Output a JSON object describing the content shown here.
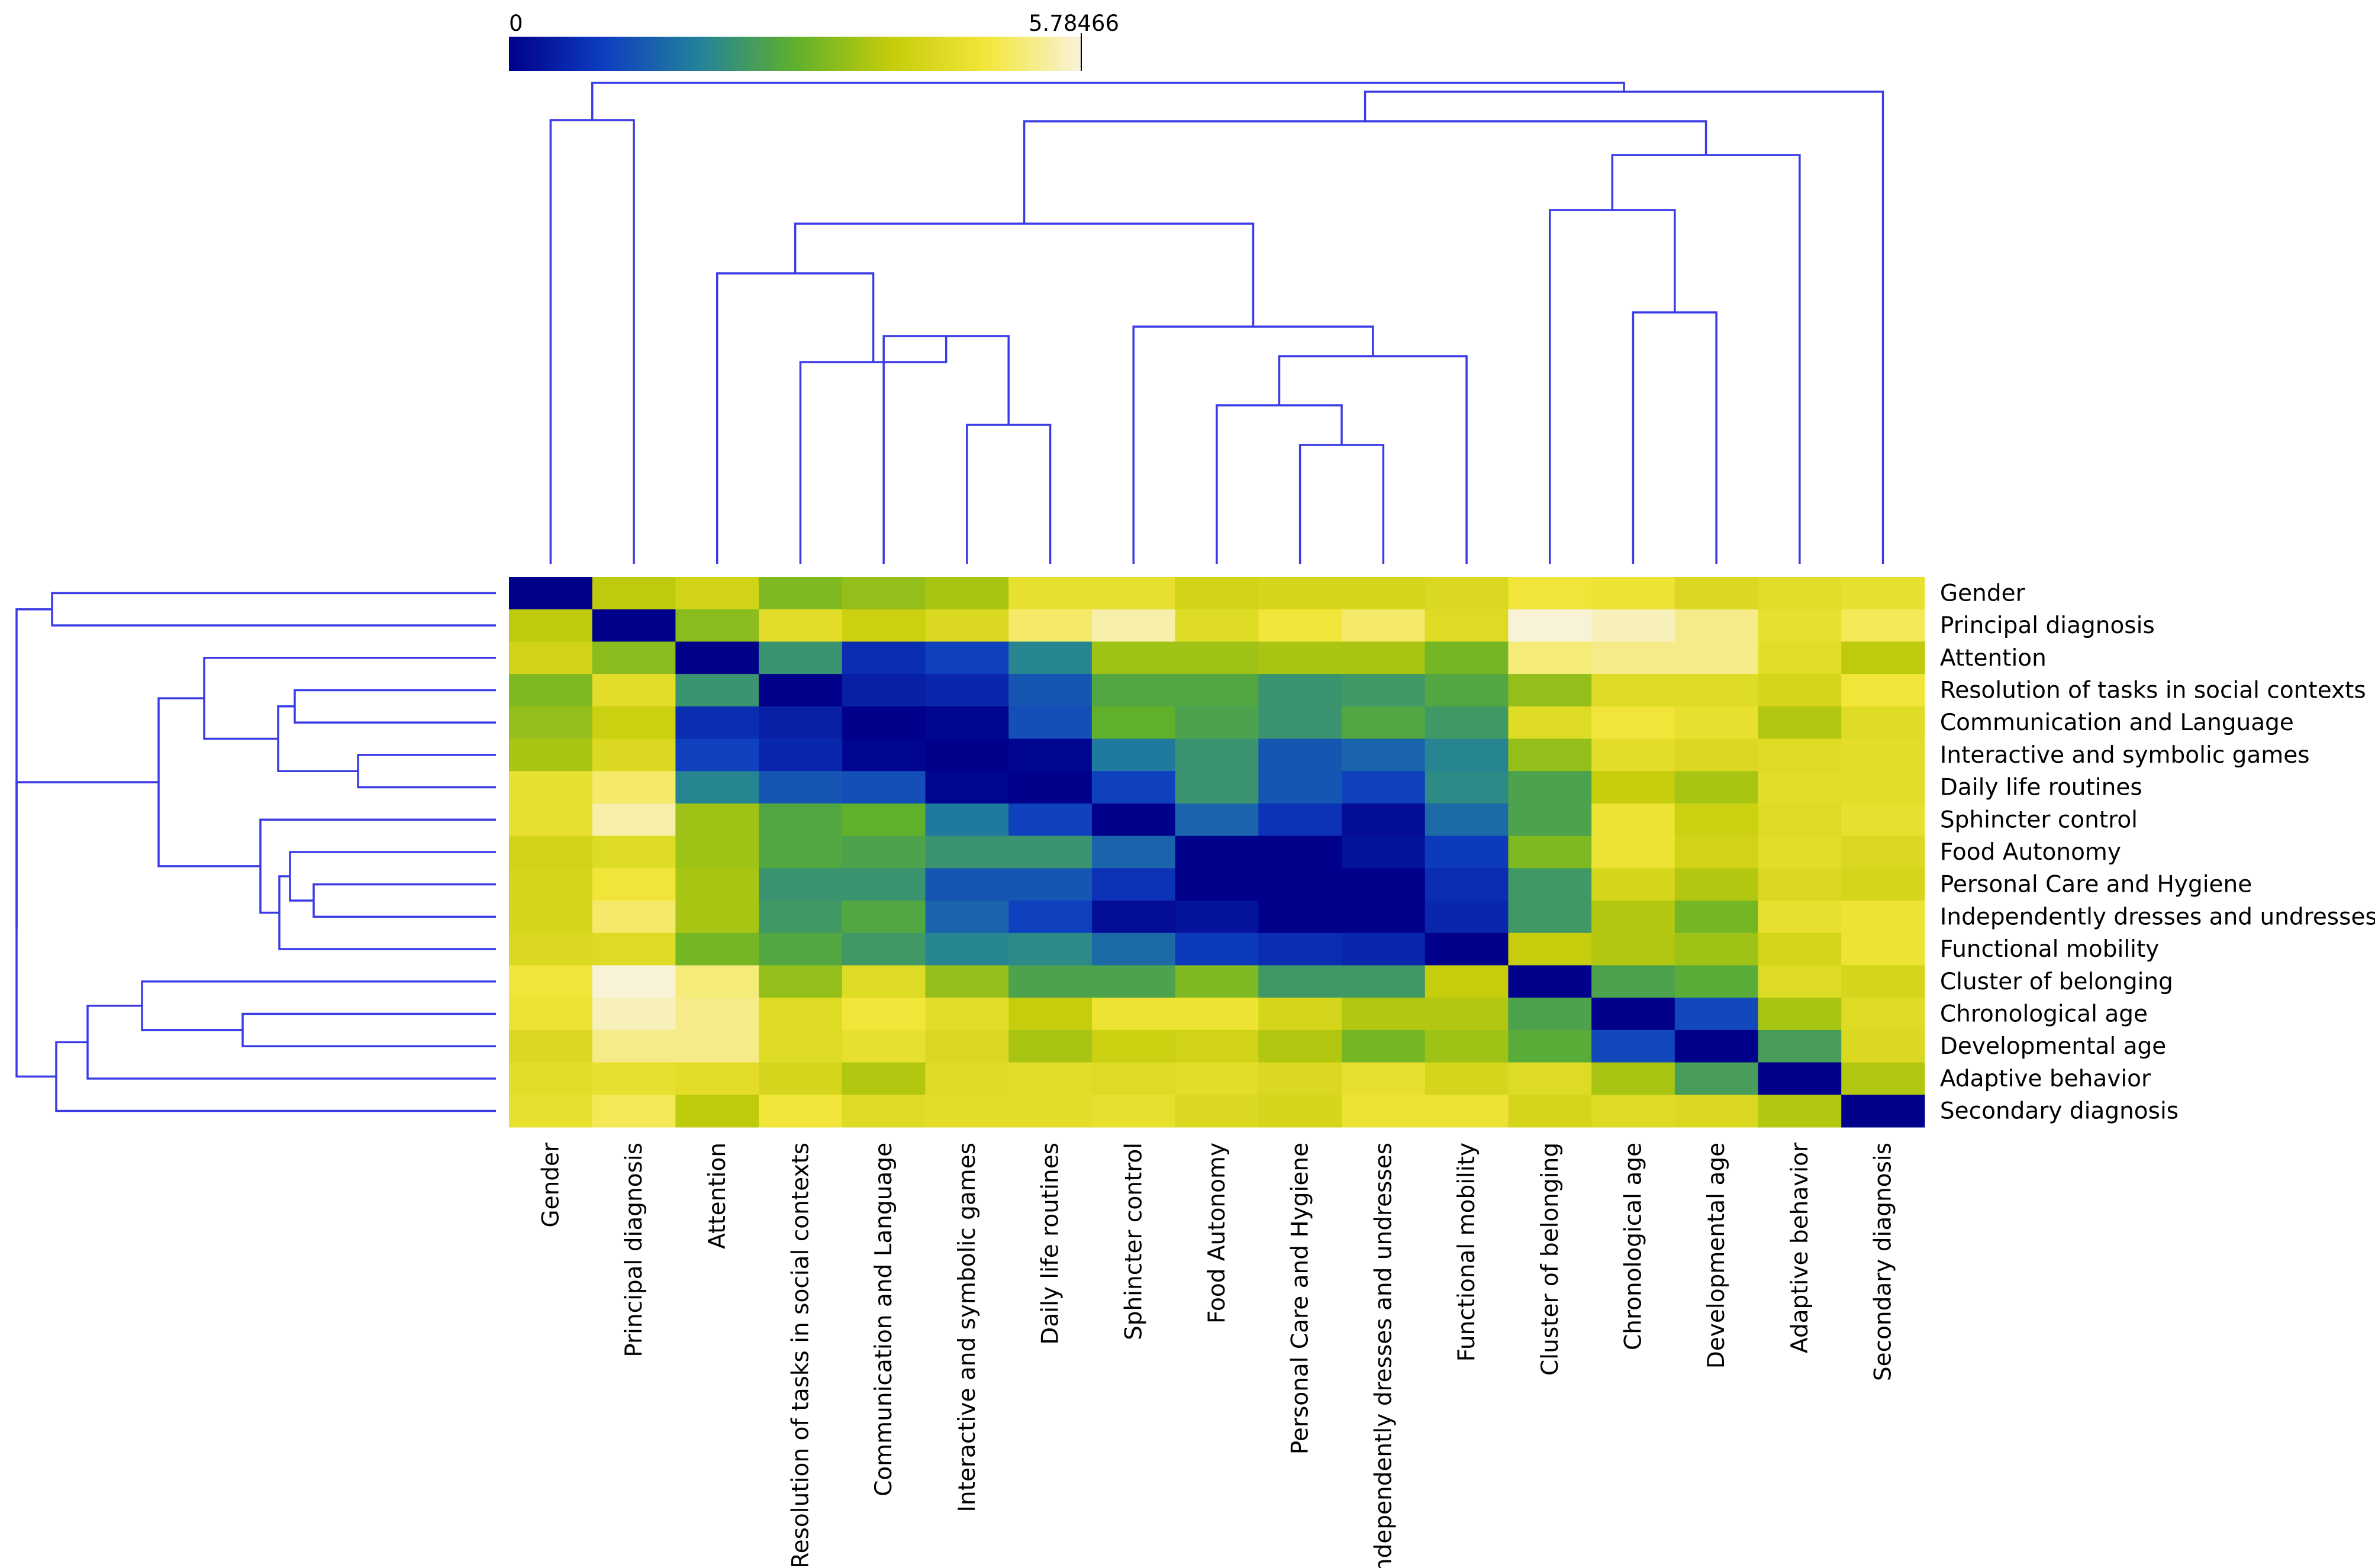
{
  "chart_data": {
    "type": "heatmap",
    "title": "",
    "variables": [
      "Gender",
      "Principal diagnosis",
      "Attention",
      "Resolution of tasks in social contexts",
      "Communication and Language",
      "Interactive and symbolic games",
      "Daily life routines",
      "Sphincter control",
      "Food Autonomy",
      "Personal Care and Hygiene",
      "Independently dresses and undresses",
      "Functional mobility",
      "Cluster of belonging",
      "Chronological age",
      "Developmental age",
      "Adaptive behavior",
      "Secondary diagnosis"
    ],
    "row_labels": [
      "Gender",
      "Principal diagnosis",
      "Attention",
      "Resolution of tasks in social contexts",
      "Communication and Language",
      "Interactive and symbolic games",
      "Daily life routines",
      "Sphincter control",
      "Food Autonomy",
      "Personal Care and Hygiene",
      "Independently dresses and undresses",
      "Functional mobility",
      "Cluster of belonging",
      "Chronological age",
      "Developmental age",
      "Adaptive behavior",
      "Secondary diagnosis"
    ],
    "column_labels": [
      "Gender",
      "Principal diagnosis",
      "Attention",
      "Resolution of tasks in social contexts",
      "Communication and Language",
      "Interactive and symbolic games",
      "Daily life routines",
      "Sphincter control",
      "Food Autonomy",
      "Personal Care and Hygiene",
      "Independently dresses and undresses",
      "Functional mobility",
      "Cluster of belonging",
      "Chronological age",
      "Developmental age",
      "Adaptive behavior",
      "Secondary diagnosis"
    ],
    "values": [
      [
        0.0,
        3.8,
        4.1,
        3.2,
        3.4,
        3.6,
        4.6,
        4.6,
        4.1,
        4.2,
        4.2,
        4.3,
        4.8,
        4.7,
        4.3,
        4.5,
        4.6
      ],
      [
        3.8,
        0.0,
        3.3,
        4.5,
        4.0,
        4.3,
        5.1,
        5.5,
        4.4,
        4.8,
        5.1,
        4.4,
        5.78,
        5.6,
        5.3,
        4.6,
        5.0
      ],
      [
        4.1,
        3.3,
        0.0,
        2.3,
        0.7,
        1.0,
        2.0,
        3.5,
        3.5,
        3.6,
        3.6,
        3.1,
        5.2,
        5.3,
        5.3,
        4.5,
        3.8
      ],
      [
        3.2,
        4.5,
        2.3,
        0.0,
        0.5,
        0.6,
        1.3,
        2.7,
        2.7,
        2.3,
        2.4,
        2.7,
        3.4,
        4.4,
        4.4,
        4.2,
        4.8
      ],
      [
        3.4,
        4.0,
        0.7,
        0.5,
        0.0,
        0.1,
        1.2,
        2.9,
        2.6,
        2.3,
        2.7,
        2.4,
        4.4,
        4.8,
        4.6,
        3.7,
        4.4
      ],
      [
        3.6,
        4.3,
        1.0,
        0.6,
        0.1,
        0.0,
        0.1,
        1.8,
        2.3,
        1.3,
        1.5,
        2.0,
        3.4,
        4.5,
        4.3,
        4.4,
        4.5
      ],
      [
        4.6,
        5.1,
        2.0,
        1.3,
        1.2,
        0.1,
        0.0,
        1.0,
        2.3,
        1.3,
        1.0,
        2.1,
        2.6,
        3.9,
        3.6,
        4.5,
        4.5
      ],
      [
        4.6,
        5.5,
        3.5,
        2.7,
        2.9,
        1.8,
        1.0,
        0.0,
        1.5,
        0.8,
        0.2,
        1.6,
        2.6,
        4.7,
        4.0,
        4.4,
        4.6
      ],
      [
        4.1,
        4.4,
        3.5,
        2.7,
        2.6,
        2.3,
        2.3,
        1.5,
        0.0,
        0.0,
        0.3,
        0.9,
        3.2,
        4.7,
        4.1,
        4.5,
        4.3
      ],
      [
        4.2,
        4.8,
        3.6,
        2.3,
        2.3,
        1.3,
        1.3,
        0.8,
        0.0,
        0.0,
        0.0,
        0.7,
        2.4,
        4.2,
        3.7,
        4.3,
        4.2
      ],
      [
        4.2,
        5.1,
        3.6,
        2.4,
        2.7,
        1.5,
        1.0,
        0.2,
        0.3,
        0.0,
        0.0,
        0.6,
        2.4,
        3.7,
        3.1,
        4.6,
        4.7
      ],
      [
        4.3,
        4.4,
        3.1,
        2.7,
        2.4,
        2.0,
        2.1,
        1.6,
        0.9,
        0.7,
        0.6,
        0.0,
        3.9,
        3.7,
        3.5,
        4.2,
        4.7
      ],
      [
        4.8,
        5.78,
        5.2,
        3.4,
        4.4,
        3.4,
        2.6,
        2.6,
        3.2,
        2.4,
        2.4,
        3.9,
        0.0,
        2.6,
        2.8,
        4.4,
        4.2
      ],
      [
        4.7,
        5.6,
        5.3,
        4.4,
        4.8,
        4.5,
        3.9,
        4.7,
        4.7,
        4.2,
        3.7,
        3.7,
        2.6,
        0.0,
        1.1,
        3.6,
        4.4
      ],
      [
        4.3,
        5.3,
        5.3,
        4.4,
        4.6,
        4.3,
        3.6,
        4.0,
        4.1,
        3.7,
        3.1,
        3.5,
        2.8,
        1.1,
        0.0,
        2.5,
        4.3
      ],
      [
        4.5,
        4.6,
        4.5,
        4.2,
        3.7,
        4.4,
        4.5,
        4.4,
        4.5,
        4.3,
        4.6,
        4.2,
        4.4,
        3.6,
        2.5,
        0.0,
        3.7
      ],
      [
        4.6,
        5.0,
        3.8,
        4.8,
        4.4,
        4.5,
        4.5,
        4.6,
        4.3,
        4.2,
        4.7,
        4.7,
        4.2,
        4.4,
        4.3,
        3.7,
        0.0
      ]
    ],
    "color_scale": {
      "min": 0,
      "max": 5.78466,
      "min_label": "0",
      "max_label": "5.78466",
      "colors": [
        "#00008b",
        "#0e3ec0",
        "#23829a",
        "#5fb02c",
        "#c4cc0a",
        "#f3e63a",
        "#f8f2d8"
      ]
    },
    "dendrogram_color": "#3a3ae6",
    "legend_placement": "top-left"
  }
}
